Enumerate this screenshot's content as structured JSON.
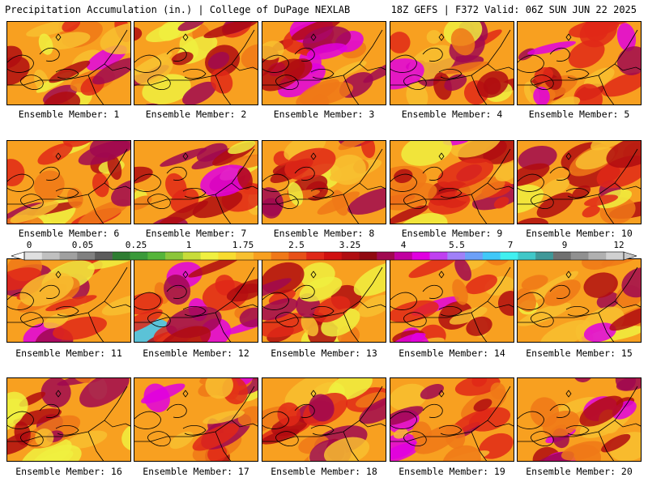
{
  "header": {
    "title": "Precipitation Accumulation (in.) | College of DuPage NEXLAB",
    "run_info": "18Z GEFS | F372 Valid: 06Z SUN JUN 22 2025"
  },
  "member_label_prefix": "Ensemble Member:",
  "members": [
    {
      "id": 1,
      "label": "Ensemble Member: 1",
      "wetness": 0.5
    },
    {
      "id": 2,
      "label": "Ensemble Member: 2",
      "wetness": 0.4
    },
    {
      "id": 3,
      "label": "Ensemble Member: 3",
      "wetness": 0.62
    },
    {
      "id": 4,
      "label": "Ensemble Member: 4",
      "wetness": 0.6
    },
    {
      "id": 5,
      "label": "Ensemble Member: 5",
      "wetness": 0.66
    },
    {
      "id": 6,
      "label": "Ensemble Member: 6",
      "wetness": 0.45
    },
    {
      "id": 7,
      "label": "Ensemble Member: 7",
      "wetness": 0.55
    },
    {
      "id": 8,
      "label": "Ensemble Member: 8",
      "wetness": 0.5
    },
    {
      "id": 9,
      "label": "Ensemble Member: 9",
      "wetness": 0.52
    },
    {
      "id": 10,
      "label": "Ensemble Member: 10",
      "wetness": 0.42
    },
    {
      "id": 11,
      "label": "Ensemble Member: 11",
      "wetness": 0.52
    },
    {
      "id": 12,
      "label": "Ensemble Member: 12",
      "wetness": 0.7
    },
    {
      "id": 13,
      "label": "Ensemble Member: 13",
      "wetness": 0.4
    },
    {
      "id": 14,
      "label": "Ensemble Member: 14",
      "wetness": 0.68
    },
    {
      "id": 15,
      "label": "Ensemble Member: 15",
      "wetness": 0.46
    },
    {
      "id": 16,
      "label": "Ensemble Member: 16",
      "wetness": 0.42
    },
    {
      "id": 17,
      "label": "Ensemble Member: 17",
      "wetness": 0.6
    },
    {
      "id": 18,
      "label": "Ensemble Member: 18",
      "wetness": 0.5
    },
    {
      "id": 19,
      "label": "Ensemble Member: 19",
      "wetness": 0.62
    },
    {
      "id": 20,
      "label": "Ensemble Member: 20",
      "wetness": 0.66
    }
  ],
  "colorbar": {
    "tick_labels": [
      "0",
      "0.05",
      "0.25",
      "1",
      "1.75",
      "2.5",
      "3.25",
      "4",
      "5.5",
      "7",
      "9",
      "12"
    ],
    "colors": [
      "#e0e0e0",
      "#c0c0c0",
      "#a0a0a0",
      "#808080",
      "#5c5c5c",
      "#2e7d32",
      "#3a9a3a",
      "#55b53a",
      "#8cc63a",
      "#c8dc3a",
      "#f0f040",
      "#f8dc30",
      "#f8c030",
      "#f8a020",
      "#f07818",
      "#e85018",
      "#e02818",
      "#d01010",
      "#b00c10",
      "#900810",
      "#a00850",
      "#c000a0",
      "#e000e0",
      "#c040f0",
      "#a080f8",
      "#6ca0f8",
      "#40c8f8",
      "#40f0f0",
      "#40c8c8",
      "#409898",
      "#707070",
      "#909090",
      "#b0b0b0",
      "#d0d0d0"
    ]
  }
}
